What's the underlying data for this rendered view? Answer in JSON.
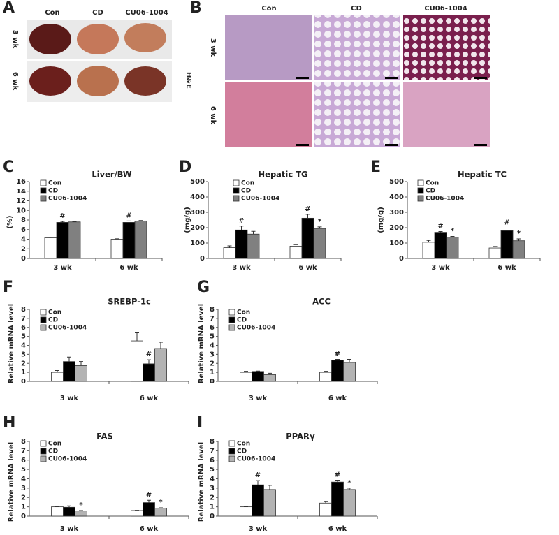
{
  "panel_a": {
    "label": "A",
    "columns": [
      "Con",
      "CD",
      "CU06-1004"
    ],
    "rows": [
      "3 wk",
      "6 wk"
    ]
  },
  "panel_b": {
    "label": "B",
    "columns": [
      "Con",
      "CD",
      "CU06-1004"
    ],
    "rows": [
      "3 wk",
      "6 wk"
    ],
    "stain": "H&E"
  },
  "chart_data": [
    {
      "type": "bar",
      "panel": "C",
      "title": "Liver/BW",
      "y_label": "(%)",
      "categories": [
        "3 wk",
        "6 wk"
      ],
      "series": [
        {
          "name": "Con",
          "color": "#ffffff",
          "values": [
            4.3,
            4.0
          ],
          "errors": [
            0.1,
            0.1
          ],
          "markers": [
            null,
            null
          ]
        },
        {
          "name": "CD",
          "color": "#000000",
          "values": [
            7.5,
            7.5
          ],
          "errors": [
            0.2,
            0.3
          ],
          "markers": [
            "#",
            "#"
          ]
        },
        {
          "name": "CU06-1004",
          "color": "#808080",
          "values": [
            7.6,
            7.8
          ],
          "errors": [
            0.1,
            0.1
          ],
          "markers": [
            null,
            null
          ]
        }
      ],
      "ylim": [
        0,
        16
      ],
      "yticks": [
        0,
        2,
        4,
        6,
        8,
        10,
        12,
        14,
        16
      ]
    },
    {
      "type": "bar",
      "panel": "D",
      "title": "Hepatic TG",
      "y_label": "(mg/g)",
      "categories": [
        "3 wk",
        "6 wk"
      ],
      "series": [
        {
          "name": "Con",
          "color": "#ffffff",
          "values": [
            70,
            80
          ],
          "errors": [
            12,
            10
          ],
          "markers": [
            null,
            null
          ]
        },
        {
          "name": "CD",
          "color": "#000000",
          "values": [
            185,
            262
          ],
          "errors": [
            25,
            25
          ],
          "markers": [
            "#",
            "#"
          ]
        },
        {
          "name": "CU06-1004",
          "color": "#808080",
          "values": [
            158,
            195
          ],
          "errors": [
            18,
            10
          ],
          "markers": [
            null,
            "*"
          ]
        }
      ],
      "ylim": [
        0,
        500
      ],
      "yticks": [
        0,
        100,
        200,
        300,
        400,
        500
      ]
    },
    {
      "type": "bar",
      "panel": "E",
      "title": "Hepatic TC",
      "y_label": "(mg/g)",
      "categories": [
        "3 wk",
        "6 wk"
      ],
      "series": [
        {
          "name": "Con",
          "color": "#ffffff",
          "values": [
            105,
            68
          ],
          "errors": [
            12,
            10
          ],
          "markers": [
            null,
            null
          ]
        },
        {
          "name": "CD",
          "color": "#000000",
          "values": [
            170,
            180
          ],
          "errors": [
            5,
            18
          ],
          "markers": [
            "#",
            "#"
          ]
        },
        {
          "name": "CU06-1004",
          "color": "#808080",
          "values": [
            138,
            115
          ],
          "errors": [
            5,
            12
          ],
          "markers": [
            "*",
            "*"
          ]
        }
      ],
      "ylim": [
        0,
        500
      ],
      "yticks": [
        0,
        100,
        200,
        300,
        400,
        500
      ]
    },
    {
      "type": "bar",
      "panel": "F",
      "title": "SREBP-1c",
      "y_label": "Relative mRNA level",
      "categories": [
        "3 wk",
        "6 wk"
      ],
      "series": [
        {
          "name": "Con",
          "color": "#ffffff",
          "values": [
            1.0,
            4.5
          ],
          "errors": [
            0.2,
            0.9
          ],
          "markers": [
            null,
            null
          ]
        },
        {
          "name": "CD",
          "color": "#000000",
          "values": [
            2.2,
            1.95
          ],
          "errors": [
            0.5,
            0.45
          ],
          "markers": [
            null,
            "#"
          ]
        },
        {
          "name": "CU06-1004",
          "color": "#b3b3b3",
          "values": [
            1.75,
            3.65
          ],
          "errors": [
            0.45,
            0.7
          ],
          "markers": [
            null,
            null
          ]
        }
      ],
      "ylim": [
        0,
        8
      ],
      "yticks": [
        0,
        1,
        2,
        3,
        4,
        5,
        6,
        7,
        8
      ]
    },
    {
      "type": "bar",
      "panel": "G",
      "title": "ACC",
      "y_label": "Relative mRNA level",
      "categories": [
        "3 wk",
        "6 wk"
      ],
      "series": [
        {
          "name": "Con",
          "color": "#ffffff",
          "values": [
            1.0,
            1.0
          ],
          "errors": [
            0.12,
            0.12
          ],
          "markers": [
            null,
            null
          ]
        },
        {
          "name": "CD",
          "color": "#000000",
          "values": [
            1.1,
            2.35
          ],
          "errors": [
            0.05,
            0.1
          ],
          "markers": [
            null,
            "#"
          ]
        },
        {
          "name": "CU06-1004",
          "color": "#b3b3b3",
          "values": [
            0.75,
            2.1
          ],
          "errors": [
            0.15,
            0.35
          ],
          "markers": [
            null,
            null
          ]
        }
      ],
      "ylim": [
        0,
        8
      ],
      "yticks": [
        0,
        1,
        2,
        3,
        4,
        5,
        6,
        7,
        8
      ]
    },
    {
      "type": "bar",
      "panel": "H",
      "title": "FAS",
      "y_label": "Relative mRNA level",
      "categories": [
        "3 wk",
        "6 wk"
      ],
      "series": [
        {
          "name": "Con",
          "color": "#ffffff",
          "values": [
            1.0,
            0.6
          ],
          "errors": [
            0.05,
            0.03
          ],
          "markers": [
            null,
            null
          ]
        },
        {
          "name": "CD",
          "color": "#000000",
          "values": [
            0.95,
            1.45
          ],
          "errors": [
            0.15,
            0.25
          ],
          "markers": [
            null,
            "#"
          ]
        },
        {
          "name": "CU06-1004",
          "color": "#b3b3b3",
          "values": [
            0.55,
            0.85
          ],
          "errors": [
            0.05,
            0.05
          ],
          "markers": [
            "*",
            "*"
          ]
        }
      ],
      "ylim": [
        0,
        8
      ],
      "yticks": [
        0,
        1,
        2,
        3,
        4,
        5,
        6,
        7,
        8
      ]
    },
    {
      "type": "bar",
      "panel": "I",
      "title": "PPARγ",
      "y_label": "Relative mRNA level",
      "categories": [
        "3 wk",
        "6 wk"
      ],
      "series": [
        {
          "name": "Con",
          "color": "#ffffff",
          "values": [
            1.0,
            1.4
          ],
          "errors": [
            0.05,
            0.15
          ],
          "markers": [
            null,
            null
          ]
        },
        {
          "name": "CD",
          "color": "#000000",
          "values": [
            3.35,
            3.65
          ],
          "errors": [
            0.45,
            0.2
          ],
          "markers": [
            "#",
            "#"
          ]
        },
        {
          "name": "CU06-1004",
          "color": "#b3b3b3",
          "values": [
            2.85,
            2.85
          ],
          "errors": [
            0.45,
            0.15
          ],
          "markers": [
            null,
            "*"
          ]
        }
      ],
      "ylim": [
        0,
        8
      ],
      "yticks": [
        0,
        1,
        2,
        3,
        4,
        5,
        6,
        7,
        8
      ]
    }
  ]
}
